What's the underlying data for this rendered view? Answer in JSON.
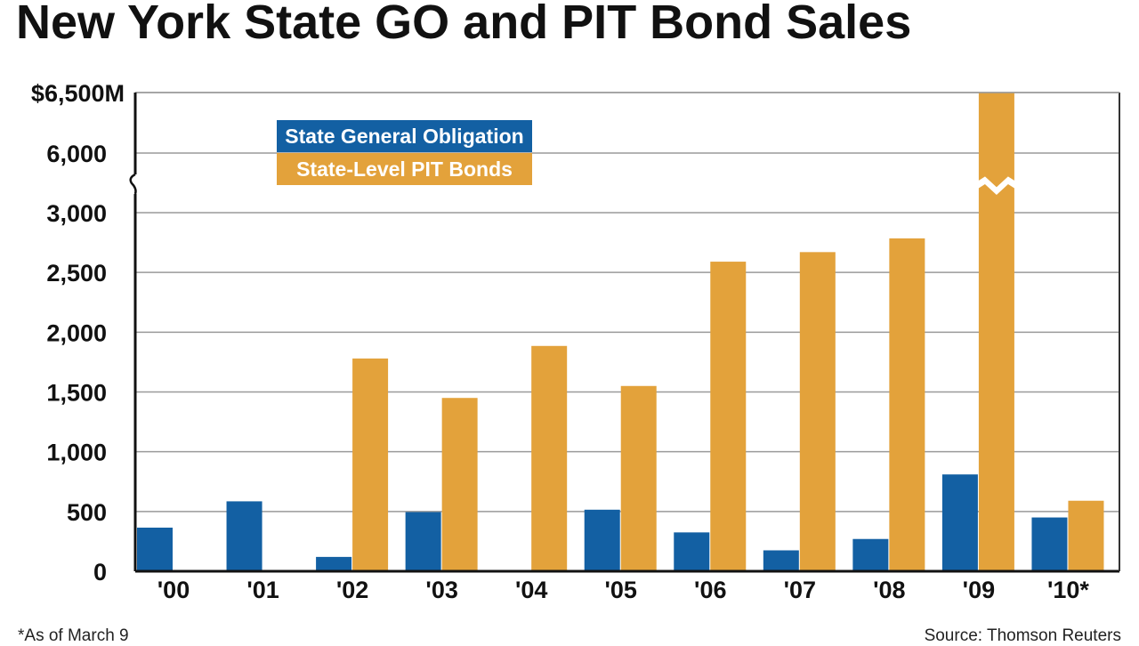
{
  "chart_data": {
    "type": "bar",
    "title": "New York State GO and PIT Bond Sales",
    "categories": [
      "'00",
      "'01",
      "'02",
      "'03",
      "'04",
      "'05",
      "'06",
      "'07",
      "'08",
      "'09",
      "'10*"
    ],
    "series": [
      {
        "name": "State General Obligation",
        "color": "#1360a3",
        "values": [
          365,
          585,
          120,
          495,
          0,
          515,
          325,
          175,
          270,
          810,
          450
        ]
      },
      {
        "name": "State-Level PIT Bonds",
        "color": "#e3a23b",
        "values": [
          0,
          0,
          1780,
          1450,
          1885,
          1550,
          2590,
          2670,
          2785,
          6500,
          590
        ]
      }
    ],
    "y_axis": {
      "ticks": [
        {
          "value": 0,
          "label": "0"
        },
        {
          "value": 500,
          "label": "500"
        },
        {
          "value": 1000,
          "label": "1,000"
        },
        {
          "value": 1500,
          "label": "1,500"
        },
        {
          "value": 2000,
          "label": "2,000"
        },
        {
          "value": 2500,
          "label": "2,500"
        },
        {
          "value": 3000,
          "label": "3,000"
        },
        {
          "value": 6000,
          "label": "6,000"
        },
        {
          "value": 6500,
          "label": "$6,500M"
        }
      ],
      "axis_break": [
        3000,
        6000
      ]
    },
    "ylim": [
      0,
      6500
    ],
    "grid": true,
    "legend_position": "top-left",
    "footnote": "*As of March 9",
    "source": "Source: Thomson Reuters"
  }
}
